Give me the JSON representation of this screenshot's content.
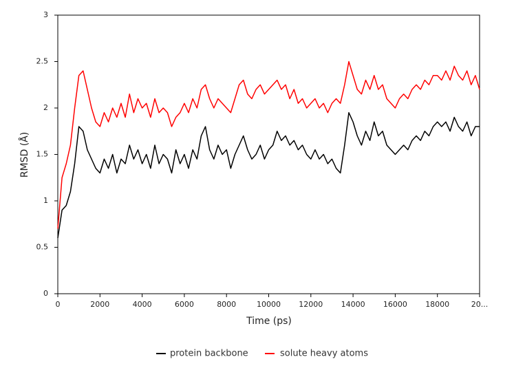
{
  "chart_data": {
    "type": "line",
    "xlabel": "Time (ps)",
    "ylabel": "RMSD (Å)",
    "x": [
      0,
      200,
      400,
      600,
      800,
      1000,
      1200,
      1400,
      1600,
      1800,
      2000,
      2200,
      2400,
      2600,
      2800,
      3000,
      3200,
      3400,
      3600,
      3800,
      4000,
      4200,
      4400,
      4600,
      4800,
      5000,
      5200,
      5400,
      5600,
      5800,
      6000,
      6200,
      6400,
      6600,
      6800,
      7000,
      7200,
      7400,
      7600,
      7800,
      8000,
      8200,
      8400,
      8600,
      8800,
      9000,
      9200,
      9400,
      9600,
      9800,
      10000,
      10200,
      10400,
      10600,
      10800,
      11000,
      11200,
      11400,
      11600,
      11800,
      12000,
      12200,
      12400,
      12600,
      12800,
      13000,
      13200,
      13400,
      13600,
      13800,
      14000,
      14200,
      14400,
      14600,
      14800,
      15000,
      15200,
      15400,
      15600,
      15800,
      16000,
      16200,
      16400,
      16600,
      16800,
      17000,
      17200,
      17400,
      17600,
      17800,
      18000,
      18200,
      18400,
      18600,
      18800,
      19000,
      19200,
      19400,
      19600,
      19800,
      20000
    ],
    "series": [
      {
        "name": "protein backbone",
        "color": "#000000",
        "values": [
          0.6,
          0.9,
          0.95,
          1.1,
          1.4,
          1.8,
          1.75,
          1.55,
          1.45,
          1.35,
          1.3,
          1.45,
          1.35,
          1.5,
          1.3,
          1.45,
          1.4,
          1.6,
          1.45,
          1.55,
          1.4,
          1.5,
          1.35,
          1.6,
          1.4,
          1.5,
          1.45,
          1.3,
          1.55,
          1.4,
          1.5,
          1.35,
          1.55,
          1.45,
          1.7,
          1.8,
          1.55,
          1.45,
          1.6,
          1.5,
          1.55,
          1.35,
          1.5,
          1.6,
          1.7,
          1.55,
          1.45,
          1.5,
          1.6,
          1.45,
          1.55,
          1.6,
          1.75,
          1.65,
          1.7,
          1.6,
          1.65,
          1.55,
          1.6,
          1.5,
          1.45,
          1.55,
          1.45,
          1.5,
          1.4,
          1.45,
          1.35,
          1.3,
          1.6,
          1.95,
          1.85,
          1.7,
          1.6,
          1.75,
          1.65,
          1.85,
          1.7,
          1.75,
          1.6,
          1.55,
          1.5,
          1.55,
          1.6,
          1.55,
          1.65,
          1.7,
          1.65,
          1.75,
          1.7,
          1.8,
          1.85,
          1.8,
          1.85,
          1.75,
          1.9,
          1.8,
          1.75,
          1.85,
          1.7,
          1.8,
          1.8
        ]
      },
      {
        "name": "solute heavy atoms",
        "color": "#ff0000",
        "values": [
          0.7,
          1.25,
          1.4,
          1.6,
          2.0,
          2.35,
          2.4,
          2.2,
          2.0,
          1.85,
          1.8,
          1.95,
          1.85,
          2.0,
          1.9,
          2.05,
          1.9,
          2.15,
          1.95,
          2.1,
          2.0,
          2.05,
          1.9,
          2.1,
          1.95,
          2.0,
          1.95,
          1.8,
          1.9,
          1.95,
          2.05,
          1.95,
          2.1,
          2.0,
          2.2,
          2.25,
          2.1,
          2.0,
          2.1,
          2.05,
          2.0,
          1.95,
          2.1,
          2.25,
          2.3,
          2.15,
          2.1,
          2.2,
          2.25,
          2.15,
          2.2,
          2.25,
          2.3,
          2.2,
          2.25,
          2.1,
          2.2,
          2.05,
          2.1,
          2.0,
          2.05,
          2.1,
          2.0,
          2.05,
          1.95,
          2.05,
          2.1,
          2.05,
          2.25,
          2.5,
          2.35,
          2.2,
          2.15,
          2.3,
          2.2,
          2.35,
          2.2,
          2.25,
          2.1,
          2.05,
          2.0,
          2.1,
          2.15,
          2.1,
          2.2,
          2.25,
          2.2,
          2.3,
          2.25,
          2.35,
          2.35,
          2.3,
          2.4,
          2.3,
          2.45,
          2.35,
          2.3,
          2.4,
          2.25,
          2.35,
          2.2
        ]
      }
    ],
    "xlim": [
      0,
      20000
    ],
    "xticks": [
      0,
      2000,
      4000,
      6000,
      8000,
      10000,
      12000,
      14000,
      16000,
      18000,
      {
        "value": 20000,
        "label": "20..."
      }
    ],
    "ylim": [
      0,
      3
    ],
    "yticks": [
      0,
      0.5,
      1,
      1.5,
      2,
      2.5,
      3
    ],
    "grid": false,
    "legend": "bottom"
  }
}
